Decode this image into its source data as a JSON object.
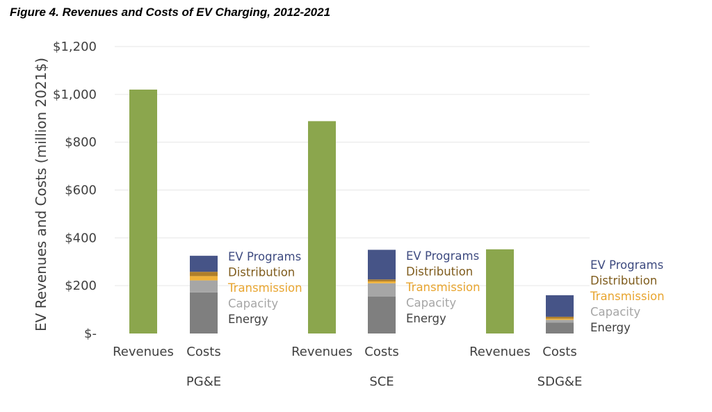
{
  "figure_title": "Figure 4. Revenues and Costs of EV Charging, 2012-2021",
  "chart_data": {
    "type": "bar",
    "stacked": true,
    "ylabel": "EV Revenues and Costs (million 2021$)",
    "ylim": [
      0,
      1200
    ],
    "yticks": [
      0,
      200,
      400,
      600,
      800,
      1000,
      1200
    ],
    "ytick_labels": [
      "$-",
      "$200",
      "$400",
      "$600",
      "$800",
      "$1,000",
      "$1,200"
    ],
    "grid": true,
    "groups": [
      "PG&E",
      "SCE",
      "SDG&E"
    ],
    "bar_labels": [
      "Revenues",
      "Costs"
    ],
    "revenues": [
      1020,
      888,
      352
    ],
    "cost_components": [
      "Energy",
      "Capacity",
      "Transmission",
      "Distribution",
      "EV Programs"
    ],
    "costs": [
      {
        "Energy": 172,
        "Capacity": 50,
        "Transmission": 18,
        "Distribution": 18,
        "EV Programs": 67
      },
      {
        "Energy": 155,
        "Capacity": 55,
        "Transmission": 8,
        "Distribution": 8,
        "EV Programs": 124
      },
      {
        "Energy": 45,
        "Capacity": 12,
        "Transmission": 5,
        "Distribution": 8,
        "EV Programs": 90
      }
    ],
    "colors": {
      "Revenues": "#8BA64D",
      "Energy": "#7F7F7F",
      "Capacity": "#A6A6A6",
      "Transmission": "#F0B23A",
      "Distribution": "#B07F2A",
      "EV Programs": "#465487"
    },
    "label_colors": {
      "EV Programs": "#3E4B80",
      "Distribution": "#7F5C1D",
      "Transmission": "#E8A530",
      "Capacity": "#A6A6A6",
      "Energy": "#404040"
    },
    "label_order": [
      "EV Programs",
      "Distribution",
      "Transmission",
      "Capacity",
      "Energy"
    ]
  }
}
